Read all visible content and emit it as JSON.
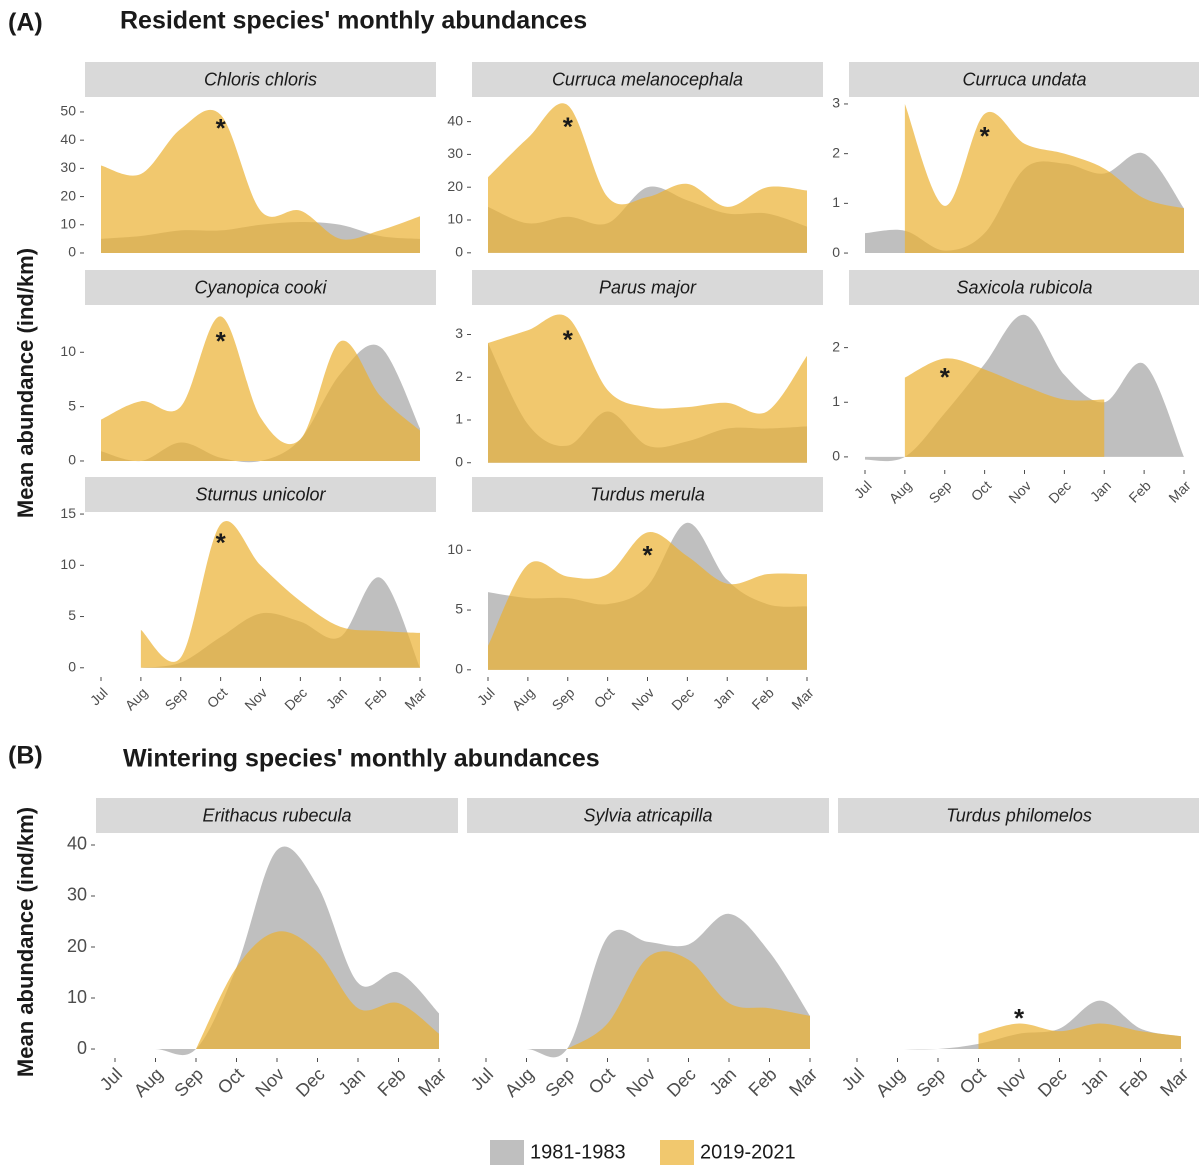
{
  "sections": [
    {
      "label": "(A)",
      "title": "Resident species' monthly abundances"
    },
    {
      "label": "(B)",
      "title": "Wintering species' monthly abundances"
    }
  ],
  "y_label": "Mean abundance (ind/km)",
  "chart_data": [
    {
      "type": "area",
      "title": "Chloris chloris",
      "categories": [
        "Jul",
        "Aug",
        "Sep",
        "Oct",
        "Nov",
        "Dec",
        "Jan",
        "Feb",
        "Mar"
      ],
      "series": [
        {
          "name": "1981-1983",
          "color": "#aaaaaa",
          "values": [
            5,
            6,
            8,
            8,
            10,
            11,
            10,
            6,
            5
          ]
        },
        {
          "name": "2019-2021",
          "color": "#ebb031",
          "values": [
            31,
            28,
            44,
            49,
            15,
            15,
            5,
            8,
            13
          ]
        }
      ],
      "ylim": [
        -3.2,
        55.3
      ],
      "yticks": [
        0,
        10,
        20,
        30,
        40,
        50
      ],
      "annotation": {
        "text": "*",
        "x": "Oct",
        "y": 46
      }
    },
    {
      "type": "area",
      "title": "Curruca melanocephala",
      "categories": [
        "Jul",
        "Aug",
        "Sep",
        "Oct",
        "Nov",
        "Dec",
        "Jan",
        "Feb",
        "Mar"
      ],
      "series": [
        {
          "name": "1981-1983",
          "color": "#aaaaaa",
          "values": [
            14,
            9,
            11,
            9,
            20,
            16,
            12,
            12,
            8
          ]
        },
        {
          "name": "2019-2021",
          "color": "#ebb031",
          "values": [
            23,
            35,
            45,
            17,
            17,
            21,
            14,
            20,
            19
          ]
        }
      ],
      "ylim": [
        -2.8,
        47.5
      ],
      "yticks": [
        0,
        10,
        20,
        30,
        40
      ],
      "annotation": {
        "text": "*",
        "x": "Sep",
        "y": 40
      }
    },
    {
      "type": "area",
      "title": "Curruca undata",
      "categories": [
        "Jul",
        "Aug",
        "Sep",
        "Oct",
        "Nov",
        "Dec",
        "Jan",
        "Feb",
        "Mar"
      ],
      "series": [
        {
          "name": "1981-1983",
          "color": "#aaaaaa",
          "values": [
            0.4,
            0.45,
            0.05,
            0.4,
            1.7,
            1.8,
            1.6,
            2.0,
            0.9
          ]
        },
        {
          "name": "2019-2021",
          "color": "#ebb031",
          "values": [
            null,
            3.0,
            0.95,
            2.8,
            2.2,
            2.0,
            1.7,
            1.1,
            0.9
          ]
        }
      ],
      "ylim": [
        -0.18,
        3.14
      ],
      "yticks": [
        0,
        1,
        2,
        3
      ],
      "annotation": {
        "text": "*",
        "x": "Oct",
        "y": 2.45
      }
    },
    {
      "type": "area",
      "title": "Cyanopica cooki",
      "categories": [
        "Jul",
        "Aug",
        "Sep",
        "Oct",
        "Nov",
        "Dec",
        "Jan",
        "Feb",
        "Mar"
      ],
      "series": [
        {
          "name": "1981-1983",
          "color": "#aaaaaa",
          "values": [
            0.9,
            0,
            1.7,
            0.3,
            0,
            2,
            8,
            10.5,
            3
          ]
        },
        {
          "name": "2019-2021",
          "color": "#ebb031",
          "values": [
            3.8,
            5.5,
            5,
            13.3,
            4,
            2,
            11,
            6,
            2.8
          ]
        }
      ],
      "ylim": [
        -0.83,
        14.35
      ],
      "yticks": [
        0,
        5,
        10
      ],
      "annotation": {
        "text": "*",
        "x": "Oct",
        "y": 11.5
      }
    },
    {
      "type": "area",
      "title": "Parus major",
      "categories": [
        "Jul",
        "Aug",
        "Sep",
        "Oct",
        "Nov",
        "Dec",
        "Jan",
        "Feb",
        "Mar"
      ],
      "series": [
        {
          "name": "1981-1983",
          "color": "#aaaaaa",
          "values": [
            2.8,
            0.9,
            0.4,
            1.2,
            0.4,
            0.5,
            0.8,
            0.8,
            0.85
          ]
        },
        {
          "name": "2019-2021",
          "color": "#ebb031",
          "values": [
            2.8,
            3.1,
            3.4,
            1.7,
            1.3,
            1.3,
            1.4,
            1.2,
            2.5
          ]
        }
      ],
      "ylim": [
        -0.17,
        3.69
      ],
      "yticks": [
        0,
        1,
        2,
        3
      ],
      "annotation": {
        "text": "*",
        "x": "Sep",
        "y": 3.0
      }
    },
    {
      "type": "area",
      "title": "Saxicola rubicola",
      "categories": [
        "Jul",
        "Aug",
        "Sep",
        "Oct",
        "Nov",
        "Dec",
        "Jan",
        "Feb",
        "Mar"
      ],
      "series": [
        {
          "name": "1981-1983",
          "color": "#aaaaaa",
          "values": [
            -0.05,
            0,
            0.8,
            1.7,
            2.6,
            1.5,
            1.0,
            1.7,
            0
          ]
        },
        {
          "name": "2019-2021",
          "color": "#ebb031",
          "values": [
            null,
            1.45,
            1.8,
            1.6,
            1.3,
            1.05,
            1.05,
            null,
            null
          ]
        }
      ],
      "ylim": [
        -0.24,
        2.78
      ],
      "yticks": [
        0,
        1,
        2
      ],
      "annotation": {
        "text": "*",
        "x": "Sep",
        "y": 1.55
      }
    },
    {
      "type": "area",
      "title": "Sturnus unicolor",
      "categories": [
        "Jul",
        "Aug",
        "Sep",
        "Oct",
        "Nov",
        "Dec",
        "Jan",
        "Feb",
        "Mar"
      ],
      "series": [
        {
          "name": "1981-1983",
          "color": "#aaaaaa",
          "values": [
            null,
            0,
            0.5,
            3,
            5.3,
            4.5,
            3,
            8.8,
            0
          ]
        },
        {
          "name": "2019-2021",
          "color": "#ebb031",
          "values": [
            null,
            3.7,
            1,
            14,
            10,
            6.5,
            4,
            3.6,
            3.4
          ]
        }
      ],
      "ylim": [
        -0.9,
        15.2
      ],
      "yticks": [
        0,
        5,
        10,
        15
      ],
      "annotation": {
        "text": "*",
        "x": "Oct",
        "y": 12.7
      }
    },
    {
      "type": "area",
      "title": "Turdus merula",
      "categories": [
        "Jul",
        "Aug",
        "Sep",
        "Oct",
        "Nov",
        "Dec",
        "Jan",
        "Feb",
        "Mar"
      ],
      "series": [
        {
          "name": "1981-1983",
          "color": "#aaaaaa",
          "values": [
            6.5,
            6,
            6,
            5.5,
            7,
            12.3,
            7.5,
            5.5,
            5.3
          ]
        },
        {
          "name": "2019-2021",
          "color": "#ebb031",
          "values": [
            2,
            8.8,
            7.8,
            8,
            11.5,
            9.5,
            7.2,
            8,
            8
          ]
        }
      ],
      "ylim": [
        -0.6,
        13.2
      ],
      "yticks": [
        0,
        5,
        10
      ],
      "annotation": {
        "text": "*",
        "x": "Nov",
        "y": 10
      }
    },
    {
      "type": "area",
      "title": "Erithacus rubecula",
      "categories": [
        "Jul",
        "Aug",
        "Sep",
        "Oct",
        "Nov",
        "Dec",
        "Jan",
        "Feb",
        "Mar"
      ],
      "series": [
        {
          "name": "1981-1983",
          "color": "#aaaaaa",
          "values": [
            0,
            0,
            0,
            16,
            39,
            32,
            13,
            15,
            7
          ]
        },
        {
          "name": "2019-2021",
          "color": "#ebb031",
          "values": [
            null,
            null,
            0,
            16,
            23,
            19,
            8,
            9,
            3
          ]
        }
      ],
      "ylim": [
        -1.76,
        42.35
      ],
      "yticks": [
        0,
        10,
        20,
        30,
        40
      ]
    },
    {
      "type": "area",
      "title": "Sylvia atricapilla",
      "categories": [
        "Jul",
        "Aug",
        "Sep",
        "Oct",
        "Nov",
        "Dec",
        "Jan",
        "Feb",
        "Mar"
      ],
      "series": [
        {
          "name": "1981-1983",
          "color": "#aaaaaa",
          "values": [
            0,
            0,
            0,
            22,
            21,
            20.5,
            26.5,
            19,
            6.5
          ]
        },
        {
          "name": "2019-2021",
          "color": "#ebb031",
          "values": [
            null,
            null,
            0,
            5,
            18,
            17.5,
            9,
            8,
            6.5
          ]
        }
      ],
      "ylim": [
        -1.76,
        42.35
      ]
    },
    {
      "type": "area",
      "title": "Turdus philomelos",
      "categories": [
        "Jul",
        "Aug",
        "Sep",
        "Oct",
        "Nov",
        "Dec",
        "Jan",
        "Feb",
        "Mar"
      ],
      "series": [
        {
          "name": "1981-1983",
          "color": "#aaaaaa",
          "values": [
            0,
            0,
            0,
            1,
            3,
            4,
            9.5,
            4,
            2.5
          ]
        },
        {
          "name": "2019-2021",
          "color": "#ebb031",
          "values": [
            null,
            null,
            null,
            3,
            5,
            3.5,
            5,
            3.5,
            2.5
          ]
        }
      ],
      "ylim": [
        -1.76,
        42.35
      ],
      "annotation": {
        "text": "*",
        "x": "Nov",
        "y": 7
      }
    }
  ]
}
